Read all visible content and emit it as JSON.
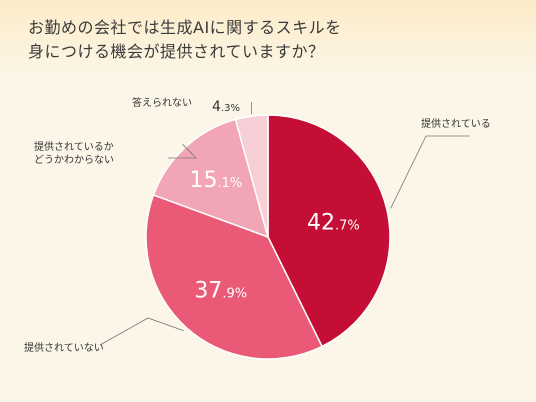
{
  "title": {
    "line1": "お勤めの会社では生成AIに関するスキルを",
    "line2": "身につける機会が提供されていますか？"
  },
  "chart_data": {
    "type": "pie",
    "title": "お勤めの会社では生成AIに関するスキルを身につける機会が提供されていますか？",
    "slices": [
      {
        "label": "提供されている",
        "value": 42.7,
        "int": "42",
        "dec": ".7%",
        "color": "#c40e36"
      },
      {
        "label": "提供されていない",
        "value": 37.9,
        "int": "37",
        "dec": ".9%",
        "color": "#ea5a76"
      },
      {
        "label": "提供されているかどうかわからない",
        "label_lines": [
          "提供されているか",
          "どうかわからない"
        ],
        "value": 15.1,
        "int": "15",
        "dec": ".1%",
        "color": "#f2a5b5"
      },
      {
        "label": "答えられない",
        "value": 4.3,
        "int": "4",
        "dec": ".3%",
        "color": "#f7cfd7"
      }
    ]
  }
}
